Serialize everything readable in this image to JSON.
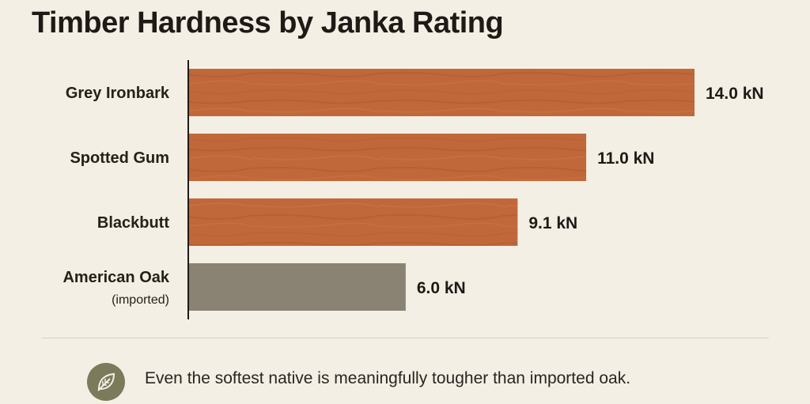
{
  "chart_data": {
    "type": "bar",
    "orientation": "horizontal",
    "title": "Timber Hardness by Janka Rating",
    "unit": "kN",
    "categories": [
      "Grey Ironbark",
      "Spotted Gum",
      "Blackbutt",
      "American Oak"
    ],
    "category_notes": [
      "",
      "",
      "",
      "(imported)"
    ],
    "values": [
      14.0,
      11.0,
      9.1,
      6.0
    ],
    "value_labels": [
      "14.0 kN",
      "11.0 kN",
      "9.1 kN",
      "6.0 kN"
    ],
    "bar_colors": [
      "#c0683a",
      "#c0683a",
      "#c0683a",
      "#8a8273"
    ],
    "xlim": [
      0,
      14
    ],
    "grid": false,
    "legend": "none"
  },
  "footer": {
    "icon": "leaf-icon",
    "note": "Even the softest native is meaningfully tougher than imported oak."
  }
}
